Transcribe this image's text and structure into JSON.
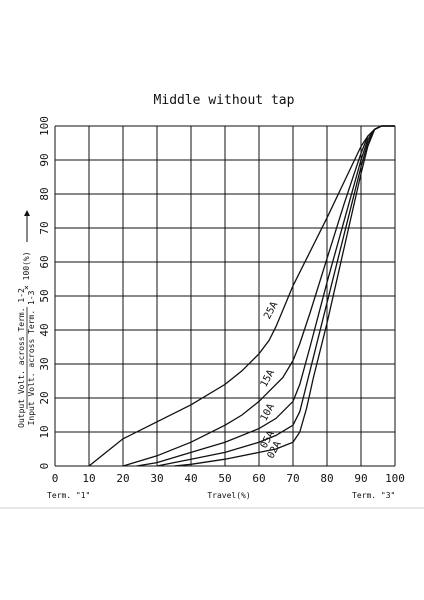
{
  "chart_data": {
    "type": "line",
    "title": "Middle without tap",
    "xlabel": "Travel(%)",
    "ylabel_numerator": "Output Volt. across  Term. 1-2",
    "ylabel_denominator": "Input Volt. across  Term. 1-3",
    "ylabel_suffix": "× 100(%)",
    "x_ticks": [
      "0",
      "10",
      "20",
      "30",
      "40",
      "50",
      "60",
      "70",
      "80",
      "90",
      "100"
    ],
    "y_ticks": [
      "0",
      "10",
      "20",
      "30",
      "40",
      "50",
      "60",
      "70",
      "80",
      "90",
      "100"
    ],
    "xlim": [
      0,
      100
    ],
    "ylim": [
      0,
      100
    ],
    "grid": true,
    "term_left": "Term. \"1\"",
    "term_right": "Term. \"3\"",
    "series": [
      {
        "name": "25A",
        "label_pos": [
          63,
          43
        ],
        "points": [
          [
            10,
            0
          ],
          [
            15,
            4
          ],
          [
            20,
            8
          ],
          [
            30,
            13
          ],
          [
            40,
            18
          ],
          [
            50,
            24
          ],
          [
            55,
            28
          ],
          [
            60,
            33
          ],
          [
            63,
            37
          ],
          [
            65,
            41
          ],
          [
            70,
            53
          ],
          [
            80,
            73
          ],
          [
            90,
            94
          ],
          [
            92,
            97
          ],
          [
            94,
            99
          ],
          [
            96,
            100
          ],
          [
            100,
            100
          ]
        ]
      },
      {
        "name": "15A",
        "label_pos": [
          62,
          23
        ],
        "points": [
          [
            20,
            0
          ],
          [
            30,
            3
          ],
          [
            40,
            7
          ],
          [
            50,
            12
          ],
          [
            55,
            15
          ],
          [
            60,
            19
          ],
          [
            63,
            22
          ],
          [
            67,
            26
          ],
          [
            70,
            31
          ],
          [
            72,
            36
          ],
          [
            75,
            45
          ],
          [
            80,
            61
          ],
          [
            85,
            77
          ],
          [
            90,
            92
          ],
          [
            92,
            97
          ],
          [
            94,
            99
          ],
          [
            96,
            100
          ],
          [
            100,
            100
          ]
        ]
      },
      {
        "name": "10A",
        "label_pos": [
          62,
          13
        ],
        "points": [
          [
            24,
            0
          ],
          [
            30,
            1
          ],
          [
            40,
            4
          ],
          [
            50,
            7
          ],
          [
            60,
            11
          ],
          [
            65,
            14
          ],
          [
            70,
            19
          ],
          [
            72,
            24
          ],
          [
            75,
            35
          ],
          [
            80,
            54
          ],
          [
            85,
            72
          ],
          [
            90,
            90
          ],
          [
            92,
            96
          ],
          [
            94,
            99
          ],
          [
            96,
            100
          ],
          [
            100,
            100
          ]
        ]
      },
      {
        "name": "05A",
        "label_pos": [
          62,
          5
        ],
        "points": [
          [
            30,
            0
          ],
          [
            40,
            2
          ],
          [
            50,
            4
          ],
          [
            60,
            7
          ],
          [
            65,
            9
          ],
          [
            70,
            12
          ],
          [
            72,
            16
          ],
          [
            75,
            28
          ],
          [
            80,
            48
          ],
          [
            85,
            68
          ],
          [
            90,
            88
          ],
          [
            92,
            95
          ],
          [
            94,
            99
          ],
          [
            96,
            100
          ],
          [
            100,
            100
          ]
        ]
      },
      {
        "name": "02A",
        "label_pos": [
          64,
          2
        ],
        "points": [
          [
            35,
            0
          ],
          [
            40,
            0.5
          ],
          [
            50,
            2
          ],
          [
            60,
            4
          ],
          [
            65,
            5
          ],
          [
            70,
            7
          ],
          [
            72,
            10
          ],
          [
            74,
            17
          ],
          [
            76,
            26
          ],
          [
            80,
            42
          ],
          [
            85,
            64
          ],
          [
            90,
            86
          ],
          [
            92,
            94
          ],
          [
            94,
            99
          ],
          [
            96,
            100
          ],
          [
            100,
            100
          ]
        ]
      }
    ]
  }
}
